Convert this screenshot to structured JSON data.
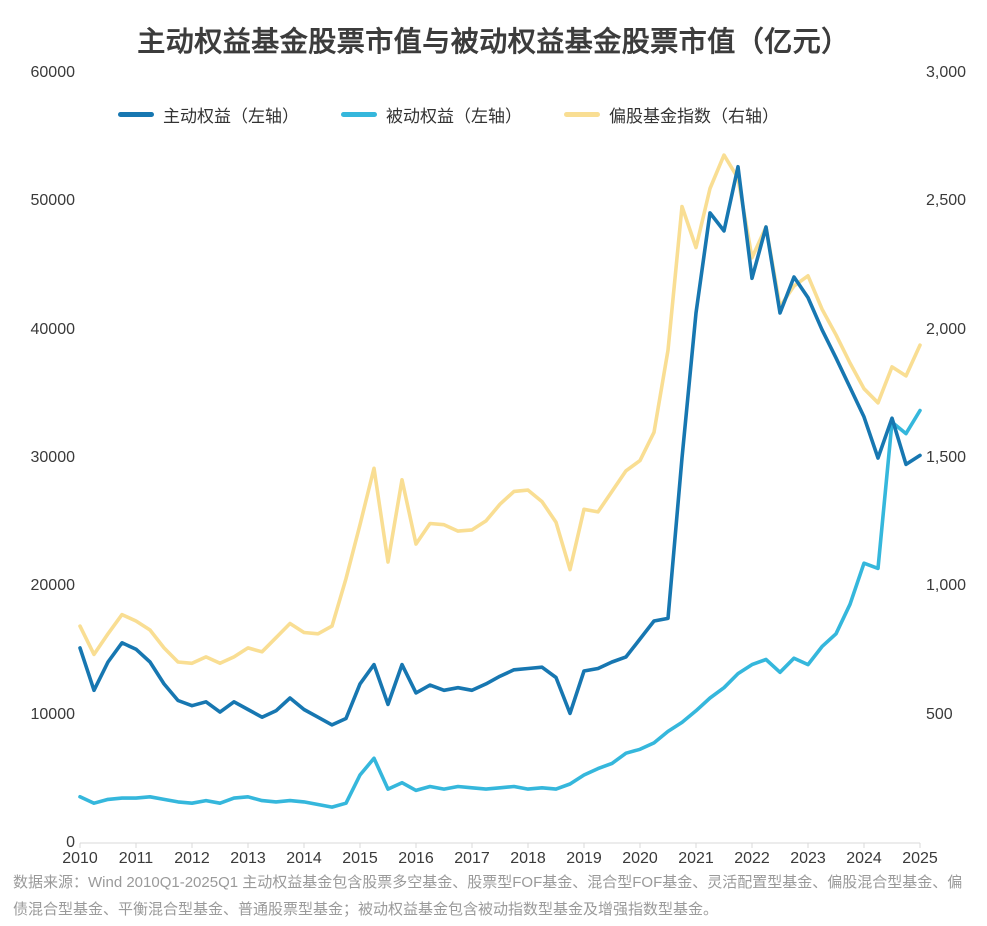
{
  "footer": {
    "source_note": "数据来源：Wind 2010Q1-2025Q1 主动权益基金包含股票多空基金、股票型FOF基金、混合型FOF基金、灵活配置型基金、偏股混合型基金、偏债混合型基金、平衡混合型基金、普通股票型基金；被动权益基金包含被动指数型基金及增强指数型基金。"
  },
  "chart_data": {
    "type": "line",
    "title": "主动权益基金股票市值与被动权益基金股票市值（亿元）",
    "legend_position": "top-left",
    "grid": false,
    "background": "#ffffff",
    "categories": [
      "2010Q1",
      "2010Q2",
      "2010Q3",
      "2010Q4",
      "2011Q1",
      "2011Q2",
      "2011Q3",
      "2011Q4",
      "2012Q1",
      "2012Q2",
      "2012Q3",
      "2012Q4",
      "2013Q1",
      "2013Q2",
      "2013Q3",
      "2013Q4",
      "2014Q1",
      "2014Q2",
      "2014Q3",
      "2014Q4",
      "2015Q1",
      "2015Q2",
      "2015Q3",
      "2015Q4",
      "2016Q1",
      "2016Q2",
      "2016Q3",
      "2016Q4",
      "2017Q1",
      "2017Q2",
      "2017Q3",
      "2017Q4",
      "2018Q1",
      "2018Q2",
      "2018Q3",
      "2018Q4",
      "2019Q1",
      "2019Q2",
      "2019Q3",
      "2019Q4",
      "2020Q1",
      "2020Q2",
      "2020Q3",
      "2020Q4",
      "2021Q1",
      "2021Q2",
      "2021Q3",
      "2021Q4",
      "2022Q1",
      "2022Q2",
      "2022Q3",
      "2022Q4",
      "2023Q1",
      "2023Q2",
      "2023Q3",
      "2023Q4",
      "2024Q1",
      "2024Q2",
      "2024Q3",
      "2024Q4",
      "2025Q1"
    ],
    "series": [
      {
        "id": "active-equity",
        "name": "主动权益（左轴）",
        "axis": "left",
        "color": "#1777B1",
        "values": [
          15200,
          11900,
          14100,
          15600,
          15100,
          14100,
          12400,
          11100,
          10700,
          11000,
          10200,
          11000,
          10400,
          9800,
          10300,
          11300,
          10400,
          9800,
          9200,
          9700,
          12400,
          13900,
          10800,
          13900,
          11700,
          12300,
          11900,
          12100,
          11900,
          12400,
          13000,
          13500,
          13600,
          13700,
          12900,
          10100,
          13400,
          13600,
          14100,
          14500,
          15900,
          17300,
          17500,
          30000,
          41300,
          49100,
          47700,
          52700,
          44000,
          48000,
          41300,
          44100,
          42500,
          40000,
          37800,
          35500,
          33200,
          30000,
          33100,
          29500,
          30200
        ]
      },
      {
        "id": "passive-equity",
        "name": "被动权益（左轴）",
        "axis": "left",
        "color": "#35B7DC",
        "values": [
          3600,
          3100,
          3400,
          3500,
          3500,
          3600,
          3400,
          3200,
          3100,
          3300,
          3100,
          3500,
          3600,
          3300,
          3200,
          3300,
          3200,
          3000,
          2800,
          3100,
          5300,
          6600,
          4200,
          4700,
          4100,
          4400,
          4200,
          4400,
          4300,
          4200,
          4300,
          4400,
          4200,
          4300,
          4200,
          4600,
          5300,
          5800,
          6200,
          7000,
          7300,
          7800,
          8700,
          9400,
          10300,
          11300,
          12100,
          13200,
          13900,
          14300,
          13300,
          14400,
          13900,
          15300,
          16300,
          18600,
          21800,
          21400,
          32800,
          31900,
          33700
        ]
      },
      {
        "id": "equity-fund-index",
        "name": "偏股基金指数（右轴）",
        "axis": "right",
        "color": "#F9DE93",
        "values": [
          845,
          735,
          815,
          890,
          865,
          830,
          760,
          705,
          700,
          725,
          700,
          725,
          760,
          745,
          800,
          855,
          820,
          815,
          845,
          1030,
          1240,
          1460,
          1095,
          1415,
          1165,
          1245,
          1240,
          1215,
          1220,
          1255,
          1320,
          1370,
          1375,
          1330,
          1250,
          1065,
          1300,
          1290,
          1370,
          1450,
          1490,
          1600,
          1920,
          2480,
          2320,
          2550,
          2680,
          2590,
          2280,
          2400,
          2090,
          2170,
          2210,
          2080,
          1980,
          1870,
          1770,
          1715,
          1855,
          1820,
          1940
        ]
      }
    ],
    "left_axis": {
      "min": 0,
      "max": 60000,
      "ticks": [
        {
          "value": 0,
          "label": "0"
        },
        {
          "value": 10000,
          "label": "10000"
        },
        {
          "value": 20000,
          "label": "20000"
        },
        {
          "value": 30000,
          "label": "30000"
        },
        {
          "value": 40000,
          "label": "40000"
        },
        {
          "value": 50000,
          "label": "50000"
        },
        {
          "value": 60000,
          "label": "60000"
        }
      ]
    },
    "right_axis": {
      "min": 0,
      "max": 3000,
      "ticks": [
        {
          "value": 500,
          "label": "500"
        },
        {
          "value": 1000,
          "label": "1,000"
        },
        {
          "value": 1500,
          "label": "1,500"
        },
        {
          "value": 2000,
          "label": "2,000"
        },
        {
          "value": 2500,
          "label": "2,500"
        },
        {
          "value": 3000,
          "label": "3,000"
        }
      ]
    },
    "x_axis": {
      "ticks": [
        {
          "index": 0,
          "label": "2010"
        },
        {
          "index": 4,
          "label": "2011"
        },
        {
          "index": 8,
          "label": "2012"
        },
        {
          "index": 12,
          "label": "2013"
        },
        {
          "index": 16,
          "label": "2014"
        },
        {
          "index": 20,
          "label": "2015"
        },
        {
          "index": 24,
          "label": "2016"
        },
        {
          "index": 28,
          "label": "2017"
        },
        {
          "index": 32,
          "label": "2018"
        },
        {
          "index": 36,
          "label": "2019"
        },
        {
          "index": 40,
          "label": "2020"
        },
        {
          "index": 44,
          "label": "2021"
        },
        {
          "index": 48,
          "label": "2022"
        },
        {
          "index": 52,
          "label": "2023"
        },
        {
          "index": 56,
          "label": "2024"
        },
        {
          "index": 60,
          "label": "2025"
        }
      ]
    },
    "axis_line_color": "#d9d9d9"
  }
}
